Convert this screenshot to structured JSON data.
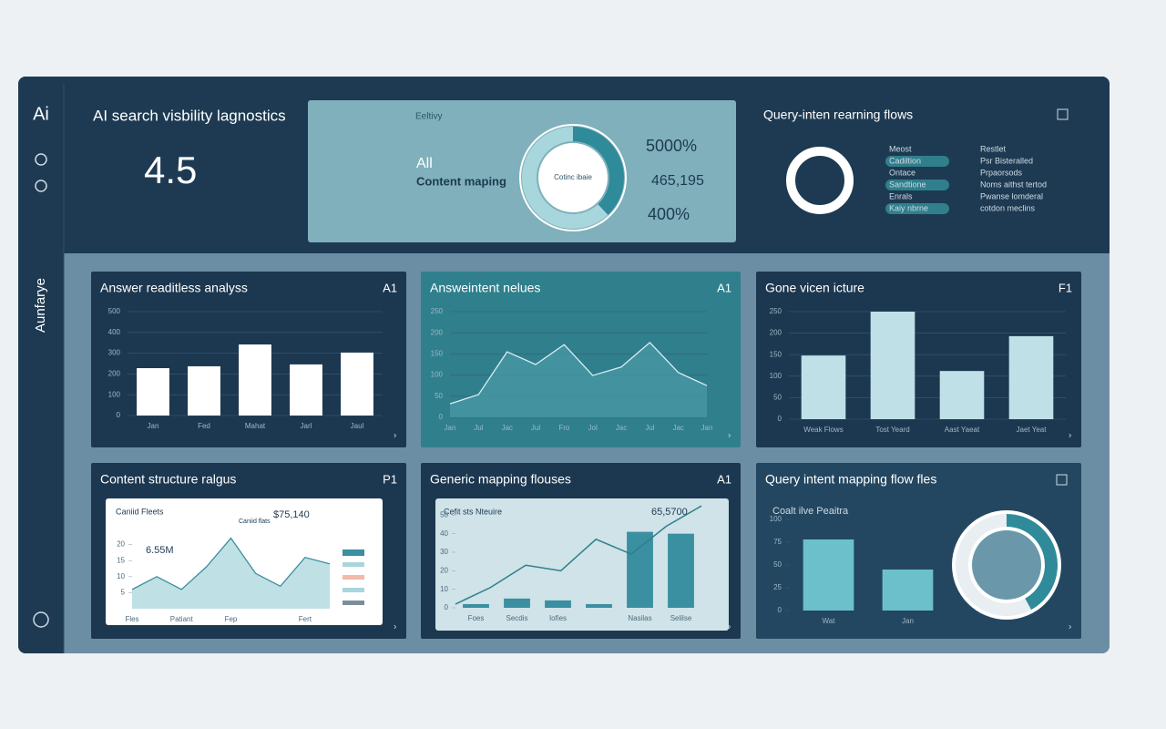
{
  "sidebar": {
    "logo": "Ai",
    "label": "Aunfarye"
  },
  "header": {
    "title": "AI search visbility lagnostics",
    "score": 4.5
  },
  "summary": {
    "caption": "Eeltivy",
    "heading": "All",
    "subheading": "Content maping",
    "donut": {
      "type": "pie",
      "values": [
        38,
        62
      ],
      "colors": [
        "#2f8a99",
        "#a7d6dc"
      ],
      "center_label": "Cotinc ibaie"
    },
    "stats": [
      "5000%",
      "465,195",
      "400%"
    ]
  },
  "flows": {
    "title": "Query-inten rearning flows",
    "col1": [
      "Meost",
      "Cadiltion",
      "Ontace",
      "Sandtione",
      "Enrals",
      "Kaiy nbrne"
    ],
    "col2": [
      "Restlet",
      "Psr Bisteralled",
      "Prpaorsods",
      "Noms aithst tertod",
      "Pwanse lomderal",
      "cotdon meclins"
    ]
  },
  "cards": [
    {
      "title": "Answer readitless analyss",
      "badge": "A1",
      "chart": {
        "type": "bar",
        "categories": [
          "Jan",
          "Fed",
          "Mahat",
          "Jarl",
          "Jaul"
        ],
        "values": [
          228,
          237,
          342,
          246,
          303
        ],
        "color": "#ffffff",
        "ylim": [
          0,
          500
        ],
        "yticks": [
          0,
          100,
          200,
          300,
          400,
          500
        ],
        "grid": true
      }
    },
    {
      "title": "Answeintent nelues",
      "badge": "A1",
      "chart": {
        "type": "area",
        "categories": [
          "Jan",
          "Jul",
          "Jac",
          "Jul",
          "Fro",
          "Jol",
          "Jac",
          "Jul",
          "Jac",
          "Jan"
        ],
        "values": [
          32,
          54,
          155,
          125,
          172,
          99,
          119,
          177,
          106,
          75
        ],
        "color": "#4a98a6",
        "ylim": [
          0,
          250
        ],
        "yticks": [
          0,
          50,
          100,
          150,
          200,
          250
        ],
        "grid": true
      }
    },
    {
      "title": "Gone vicen icture",
      "badge": "F1",
      "chart": {
        "type": "bar",
        "categories": [
          "Weak Flows",
          "Tost Yeard",
          "Aast Yaeat",
          "Jaet Yeat"
        ],
        "values": [
          148,
          250,
          112,
          193
        ],
        "color": "#bfe0e6",
        "ylim": [
          0,
          250
        ],
        "yticks": [
          0,
          50,
          100,
          150,
          200,
          250
        ],
        "grid": true
      }
    },
    {
      "title": "Content structure ralgus",
      "badge": "P1",
      "notes": [
        "Caniid Fleets",
        "$75,140",
        "6.55M",
        "Caniid flats"
      ],
      "chart": {
        "type": "area",
        "categories": [
          "Fles",
          null,
          "Patiant",
          null,
          "Fep",
          null,
          null,
          "Fert",
          null
        ],
        "values": [
          6,
          10,
          6,
          13,
          22,
          11,
          7,
          16,
          14
        ],
        "color": "#a9d5dc",
        "ylim": [
          0,
          25
        ],
        "yticks": [
          5,
          10,
          15,
          20
        ],
        "grid": false
      }
    },
    {
      "title": "Generic mapping flouses",
      "badge": "A1",
      "notes": [
        "Cefit sts Nteuire",
        "65,5700"
      ],
      "chart": {
        "type": "combo",
        "categories": [
          "Foes",
          "Secdis",
          "Iofies",
          null,
          "Nasilas",
          "Selilse"
        ],
        "values": [
          2,
          5,
          4,
          2,
          41,
          40
        ],
        "line_values": [
          2,
          11,
          23,
          20,
          37,
          29,
          44,
          55
        ],
        "color": "#3a8fa0",
        "ylim": [
          0,
          60
        ],
        "yticks": [
          0,
          10,
          20,
          30,
          40,
          50
        ],
        "grid": false
      }
    },
    {
      "title": "Query intent mapping flow fles",
      "notes": [
        "Coalt ilve Peaitra"
      ],
      "chart": {
        "type": "bar",
        "categories": [
          "Wat",
          "Jan"
        ],
        "values": [
          78,
          45
        ],
        "color": "#6cc0cc",
        "ylim": [
          0,
          100
        ],
        "yticks": [
          0,
          25,
          50,
          75,
          100
        ],
        "grid": false
      },
      "donut": {
        "type": "pie",
        "values": [
          42,
          58
        ],
        "colors": [
          "#2f8a99",
          "#e8eef1"
        ]
      }
    }
  ]
}
